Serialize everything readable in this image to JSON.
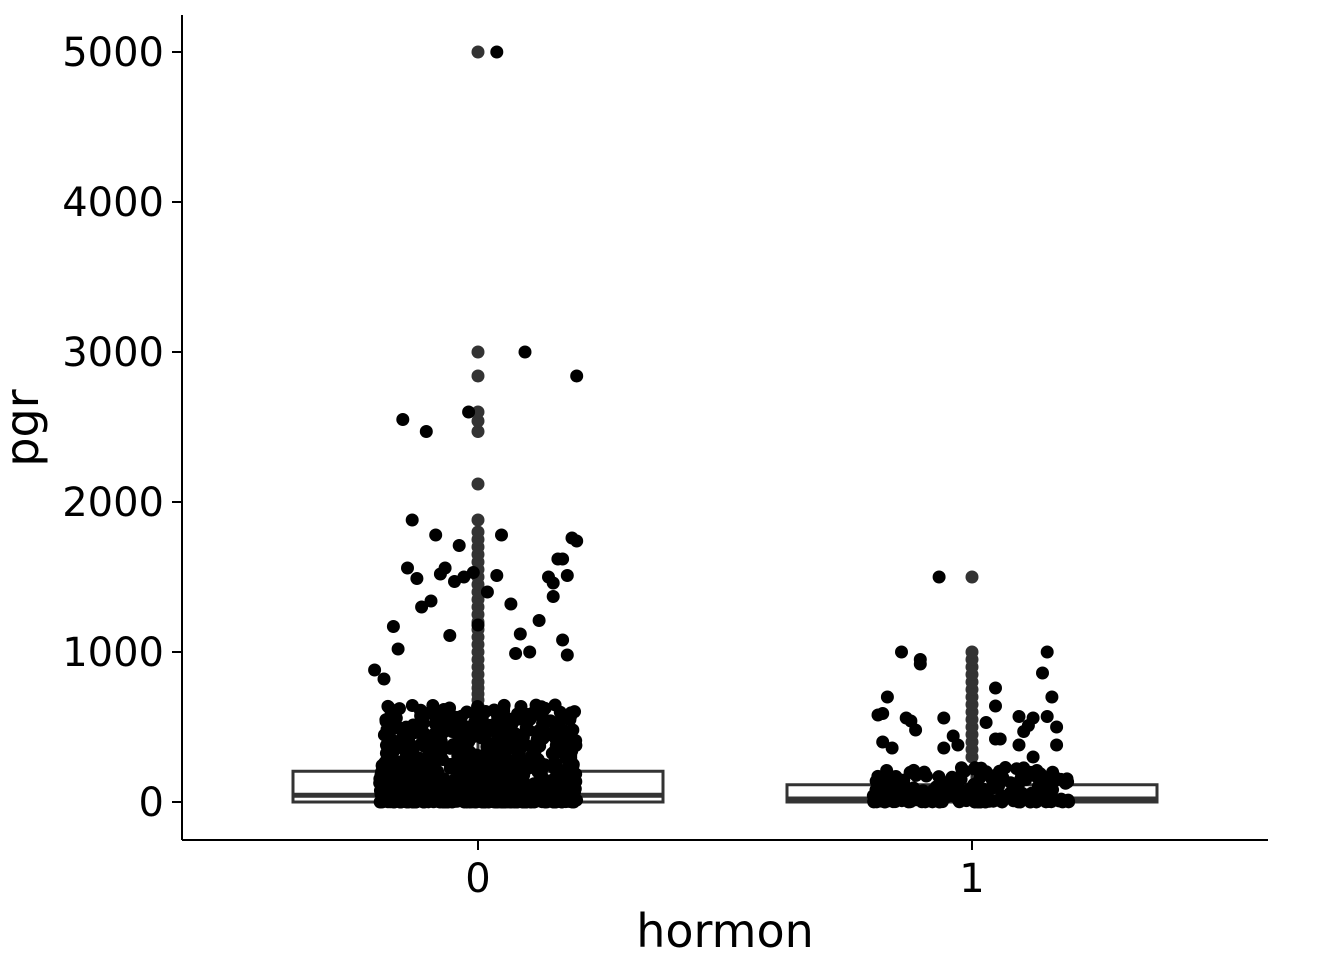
{
  "chart_data": {
    "type": "boxplot-jitter",
    "xlabel": "hormon",
    "ylabel": "pgr",
    "categories": [
      "0",
      "1"
    ],
    "ylim": [
      -250,
      5250
    ],
    "yticks": [
      0,
      1000,
      2000,
      3000,
      4000,
      5000
    ],
    "grid": false,
    "boxes": [
      {
        "category": "0",
        "q1": 0,
        "median": 45,
        "q3": 205,
        "whisker_low": 0,
        "whisker_high": 510,
        "outliers": [
          520,
          560,
          600,
          640,
          680,
          720,
          760,
          800,
          850,
          900,
          950,
          1000,
          1050,
          1100,
          1150,
          1200,
          1250,
          1300,
          1350,
          1400,
          1450,
          1500,
          1550,
          1600,
          1650,
          1700,
          1750,
          1800,
          1880,
          2120,
          2470,
          2540,
          2600,
          2840,
          3000,
          5000
        ]
      },
      {
        "category": "1",
        "q1": 0,
        "median": 20,
        "q3": 115,
        "whisker_low": 0,
        "whisker_high": 280,
        "outliers": [
          300,
          350,
          400,
          450,
          500,
          550,
          600,
          650,
          700,
          750,
          800,
          850,
          900,
          950,
          1000,
          1500
        ]
      }
    ],
    "points": [
      {
        "category": "0",
        "x": -0.22,
        "y": 880
      },
      {
        "category": "0",
        "x": -0.2,
        "y": 820
      },
      {
        "category": "0",
        "x": -0.16,
        "y": 2550
      },
      {
        "category": "0",
        "x": -0.14,
        "y": 1880
      },
      {
        "category": "0",
        "x": -0.11,
        "y": 2470
      },
      {
        "category": "0",
        "x": -0.09,
        "y": 1780
      },
      {
        "category": "0",
        "x": -0.15,
        "y": 1560
      },
      {
        "category": "0",
        "x": -0.13,
        "y": 1490
      },
      {
        "category": "0",
        "x": -0.12,
        "y": 1300
      },
      {
        "category": "0",
        "x": -0.1,
        "y": 1340
      },
      {
        "category": "0",
        "x": -0.08,
        "y": 1520
      },
      {
        "category": "0",
        "x": -0.07,
        "y": 1560
      },
      {
        "category": "0",
        "x": -0.05,
        "y": 1470
      },
      {
        "category": "0",
        "x": -0.04,
        "y": 1710
      },
      {
        "category": "0",
        "x": -0.03,
        "y": 1500
      },
      {
        "category": "0",
        "x": -0.02,
        "y": 2600
      },
      {
        "category": "0",
        "x": -0.01,
        "y": 1530
      },
      {
        "category": "0",
        "x": 0.04,
        "y": 5000
      },
      {
        "category": "0",
        "x": 0.1,
        "y": 3000
      },
      {
        "category": "0",
        "x": 0.21,
        "y": 2840
      },
      {
        "category": "0",
        "x": 0.05,
        "y": 1780
      },
      {
        "category": "0",
        "x": 0.02,
        "y": 1400
      },
      {
        "category": "0",
        "x": 0.04,
        "y": 1510
      },
      {
        "category": "0",
        "x": 0.07,
        "y": 1320
      },
      {
        "category": "0",
        "x": 0.09,
        "y": 1120
      },
      {
        "category": "0",
        "x": 0.13,
        "y": 1210
      },
      {
        "category": "0",
        "x": 0.15,
        "y": 1500
      },
      {
        "category": "0",
        "x": 0.16,
        "y": 1460
      },
      {
        "category": "0",
        "x": 0.17,
        "y": 1620
      },
      {
        "category": "0",
        "x": 0.18,
        "y": 1620
      },
      {
        "category": "0",
        "x": 0.19,
        "y": 1510
      },
      {
        "category": "0",
        "x": 0.2,
        "y": 1760
      },
      {
        "category": "0",
        "x": 0.21,
        "y": 1740
      },
      {
        "category": "0",
        "x": 0.16,
        "y": 1370
      },
      {
        "category": "0",
        "x": 0.18,
        "y": 1080
      },
      {
        "category": "0",
        "x": 0.19,
        "y": 980
      },
      {
        "category": "0",
        "x": -0.18,
        "y": 1170
      },
      {
        "category": "0",
        "x": -0.17,
        "y": 1020
      },
      {
        "category": "0",
        "x": -0.06,
        "y": 1110
      },
      {
        "category": "0",
        "x": 0.0,
        "y": 1180
      },
      {
        "category": "0",
        "x": 0.08,
        "y": 990
      },
      {
        "category": "0",
        "x": 0.11,
        "y": 1000
      },
      {
        "category": "1",
        "x": -0.07,
        "y": 1500
      },
      {
        "category": "1",
        "x": -0.15,
        "y": 1000
      },
      {
        "category": "1",
        "x": -0.11,
        "y": 950
      },
      {
        "category": "1",
        "x": -0.11,
        "y": 920
      },
      {
        "category": "1",
        "x": -0.18,
        "y": 700
      },
      {
        "category": "1",
        "x": -0.19,
        "y": 590
      },
      {
        "category": "1",
        "x": -0.2,
        "y": 580
      },
      {
        "category": "1",
        "x": -0.14,
        "y": 560
      },
      {
        "category": "1",
        "x": -0.13,
        "y": 540
      },
      {
        "category": "1",
        "x": -0.12,
        "y": 480
      },
      {
        "category": "1",
        "x": -0.06,
        "y": 560
      },
      {
        "category": "1",
        "x": -0.04,
        "y": 440
      },
      {
        "category": "1",
        "x": -0.03,
        "y": 380
      },
      {
        "category": "1",
        "x": -0.06,
        "y": 360
      },
      {
        "category": "1",
        "x": -0.17,
        "y": 360
      },
      {
        "category": "1",
        "x": -0.19,
        "y": 400
      },
      {
        "category": "1",
        "x": 0.03,
        "y": 530
      },
      {
        "category": "1",
        "x": 0.05,
        "y": 640
      },
      {
        "category": "1",
        "x": 0.06,
        "y": 420
      },
      {
        "category": "1",
        "x": 0.05,
        "y": 420
      },
      {
        "category": "1",
        "x": 0.05,
        "y": 760
      },
      {
        "category": "1",
        "x": 0.1,
        "y": 570
      },
      {
        "category": "1",
        "x": 0.1,
        "y": 380
      },
      {
        "category": "1",
        "x": 0.11,
        "y": 470
      },
      {
        "category": "1",
        "x": 0.12,
        "y": 510
      },
      {
        "category": "1",
        "x": 0.13,
        "y": 560
      },
      {
        "category": "1",
        "x": 0.13,
        "y": 300
      },
      {
        "category": "1",
        "x": 0.15,
        "y": 860
      },
      {
        "category": "1",
        "x": 0.16,
        "y": 1000
      },
      {
        "category": "1",
        "x": 0.16,
        "y": 570
      },
      {
        "category": "1",
        "x": 0.17,
        "y": 700
      },
      {
        "category": "1",
        "x": 0.18,
        "y": 500
      },
      {
        "category": "1",
        "x": 0.18,
        "y": 380
      }
    ],
    "dense_band": [
      {
        "category": "0",
        "x_range": [
          -0.21,
          0.21
        ],
        "y_range": [
          0,
          650
        ],
        "count": 900
      },
      {
        "category": "1",
        "x_range": [
          -0.21,
          0.21
        ],
        "y_range": [
          0,
          230
        ],
        "count": 220
      }
    ]
  }
}
